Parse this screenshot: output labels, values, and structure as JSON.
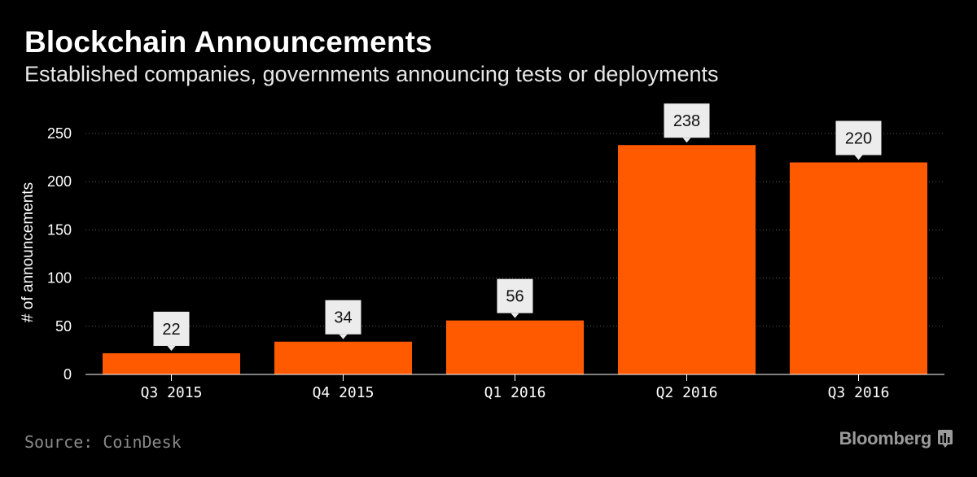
{
  "header": {
    "title": "Blockchain Announcements",
    "subtitle": "Established companies, governments announcing tests or deployments"
  },
  "footer": {
    "source": "Source: CoinDesk",
    "brand": "Bloomberg",
    "brand_icon": "bloomberg-bars-icon"
  },
  "colors": {
    "background": "#000000",
    "bar": "#ff5a00",
    "gridline": "#5a5a5a",
    "label_box": "#ececec"
  },
  "chart_data": {
    "type": "bar",
    "title": "Blockchain Announcements",
    "subtitle": "Established companies, governments announcing tests or deployments",
    "categories": [
      "Q3  2015",
      "Q4  2015",
      "Q1  2016",
      "Q2  2016",
      "Q3  2016"
    ],
    "values": [
      22,
      34,
      56,
      238,
      220
    ],
    "data_labels": [
      "22",
      "34",
      "56",
      "238",
      "220"
    ],
    "xlabel": "",
    "ylabel": "# of announcements",
    "ylim": [
      0,
      250
    ],
    "yticks": [
      0,
      50,
      100,
      150,
      200,
      250
    ],
    "grid": true,
    "legend": "none"
  }
}
